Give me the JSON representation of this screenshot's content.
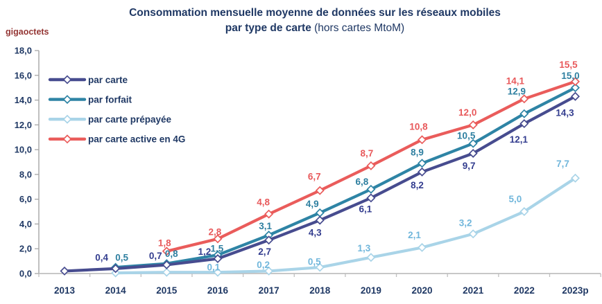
{
  "header": {
    "title_line1": "Consommation mensuelle moyenne de données sur les réseaux mobiles",
    "title_line2_bold": "par type de carte",
    "title_line2_normal": " (hors cartes MtoM)",
    "unit_label": "gigaoctets"
  },
  "colors": {
    "title_text": "#1F3864",
    "axis_text": "#1F3864",
    "unit_label": "#943634",
    "y_axis_line": "#A6A6A6",
    "x_axis_line": "#BFBFBF",
    "legend_text": "#1F3864"
  },
  "chart_data": {
    "type": "line",
    "title": "Consommation mensuelle moyenne de données sur les réseaux mobiles par type de carte (hors cartes MtoM)",
    "ylabel": "gigaoctets",
    "xlabel": "",
    "ylim": [
      0,
      18
    ],
    "y_tick_step": 2,
    "grid": false,
    "legend_position": "top-left",
    "y_tick_labels": [
      "18,0",
      "16,0",
      "14,0",
      "12,0",
      "10,0",
      "8,0",
      "6,0",
      "4,0",
      "2,0",
      "0,0"
    ],
    "categories": [
      "2013",
      "2014",
      "2015",
      "2016",
      "2017",
      "2018",
      "2019",
      "2020",
      "2021",
      "2022",
      "2023p"
    ],
    "draw_order": [
      2,
      1,
      0,
      3
    ],
    "series": [
      {
        "id": "par-carte",
        "name": "par carte",
        "color": "#474C8F",
        "label_color": "#333D8F",
        "values": [
          0.2,
          0.4,
          0.7,
          1.2,
          2.7,
          4.3,
          6.1,
          8.2,
          9.7,
          12.1,
          14.3
        ],
        "labels": [
          "",
          "0,4",
          "0,7",
          "1,2",
          "2,7",
          "4,3",
          "6,1",
          "8,2",
          "9,7",
          "12,1",
          "14,3"
        ],
        "label_dx": [
          0,
          -20,
          -16,
          -19,
          -6,
          -7,
          -8,
          -7,
          -6,
          -8,
          -15
        ],
        "label_dy": [
          0,
          -16,
          -13,
          -10,
          17,
          18,
          16,
          19,
          18,
          23,
          24
        ]
      },
      {
        "id": "par-forfait",
        "name": "par forfait",
        "color": "#2E84A5",
        "label_color": "#2E7FA0",
        "values": [
          null,
          0.5,
          0.8,
          1.5,
          3.1,
          4.9,
          6.8,
          8.9,
          10.5,
          12.9,
          15.0
        ],
        "labels": [
          "",
          "0,5",
          "0,8",
          "1,5",
          "3,1",
          "4,9",
          "6,8",
          "8,9",
          "10,5",
          "12,9",
          "15,0"
        ],
        "label_dx": [
          0,
          9,
          7,
          -1,
          -5,
          -11,
          -13,
          -7,
          -10,
          -11,
          -7
        ],
        "label_dy": [
          0,
          -14,
          -14,
          -9,
          -13,
          -13,
          -11,
          -16,
          -11,
          -32,
          -17
        ]
      },
      {
        "id": "par-carte-prepayee",
        "name": "par carte prépayée",
        "color": "#A9D4E8",
        "label_color": "#70B6DB",
        "values": [
          null,
          0.05,
          0.1,
          0.1,
          0.2,
          0.5,
          1.3,
          2.1,
          3.2,
          5.0,
          7.7
        ],
        "labels": [
          "",
          "",
          "",
          "0,1",
          "0,2",
          "0,5",
          "1,3",
          "2,1",
          "3,2",
          "5,0",
          "7,7"
        ],
        "label_dx": [
          0,
          0,
          0,
          -6,
          -8,
          -8,
          -10,
          -11,
          -11,
          -13,
          -18
        ],
        "label_dy": [
          0,
          0,
          0,
          -7,
          -9,
          -8,
          -13,
          -18,
          -16,
          -18,
          -21
        ]
      },
      {
        "id": "par-carte-active-4g",
        "name": "par carte active en 4G",
        "color": "#EA5C5B",
        "label_color": "#E8595B",
        "values": [
          null,
          null,
          1.8,
          2.8,
          4.8,
          6.7,
          8.7,
          10.8,
          12.0,
          14.1,
          15.5
        ],
        "labels": [
          "",
          "",
          "1,8",
          "2,8",
          "4,8",
          "6,7",
          "8,7",
          "10,8",
          "12,0",
          "14,1",
          "15,5"
        ],
        "label_dx": [
          0,
          0,
          -3,
          -4,
          -8,
          -8,
          -6,
          -5,
          -8,
          -13,
          -10
        ],
        "label_dy": [
          0,
          0,
          -12,
          -10,
          -17,
          -20,
          -18,
          -19,
          -18,
          -26,
          -24
        ]
      }
    ]
  }
}
